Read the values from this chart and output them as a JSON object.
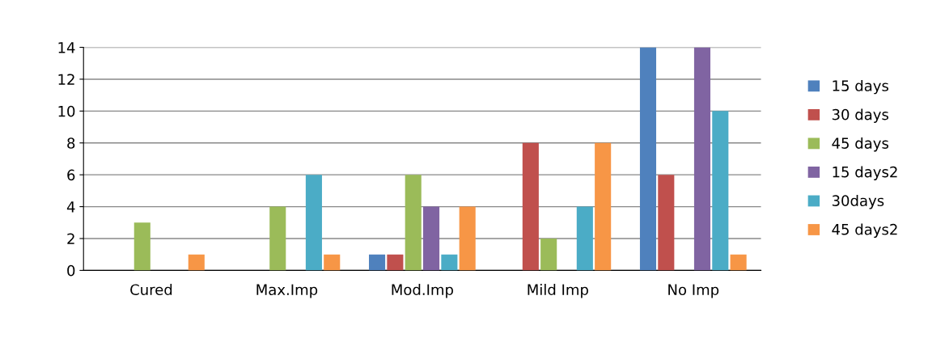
{
  "chart_data": {
    "type": "bar",
    "categories": [
      "Cured",
      "Max.Imp",
      "Mod.Imp",
      "Mild Imp",
      "No Imp"
    ],
    "series": [
      {
        "name": "15 days",
        "color": "#4f81bd",
        "values": [
          0,
          0,
          1,
          0,
          14
        ]
      },
      {
        "name": "30 days",
        "color": "#c0504d",
        "values": [
          0,
          0,
          1,
          8,
          6
        ]
      },
      {
        "name": "45 days",
        "color": "#9bbb59",
        "values": [
          3,
          4,
          6,
          2,
          0
        ]
      },
      {
        "name": "15 days2",
        "color": "#8064a2",
        "values": [
          0,
          0,
          4,
          0,
          14
        ]
      },
      {
        "name": "30days",
        "color": "#4bacc6",
        "values": [
          0,
          6,
          1,
          4,
          10
        ]
      },
      {
        "name": "45 days2",
        "color": "#f79646",
        "values": [
          1,
          1,
          4,
          8,
          1
        ]
      }
    ],
    "ylim": [
      0,
      14
    ],
    "yticks": [
      0,
      2,
      4,
      6,
      8,
      10,
      12,
      14
    ],
    "grid": "y",
    "legend": "right"
  }
}
